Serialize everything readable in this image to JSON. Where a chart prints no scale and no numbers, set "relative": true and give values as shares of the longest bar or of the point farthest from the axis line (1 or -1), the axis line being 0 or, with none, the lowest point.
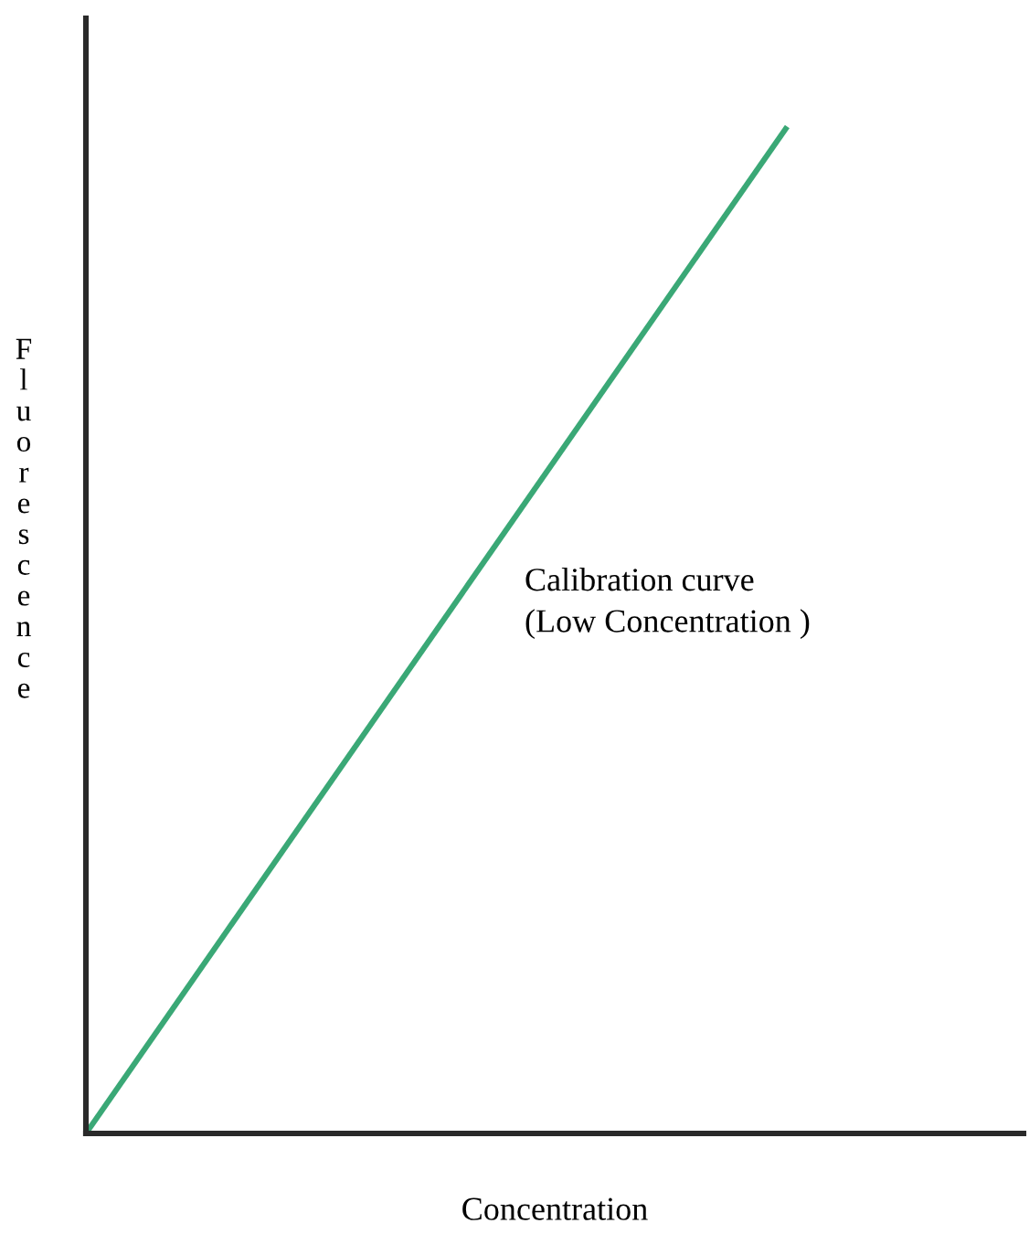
{
  "chart_data": {
    "type": "line",
    "relative": true,
    "xlabel": "Concentration",
    "ylabel": "Fluorescence",
    "categories": [
      null,
      null
    ],
    "series": [
      {
        "color": "#3aa876",
        "values": [
          0,
          1
        ]
      }
    ],
    "annotations": [
      "Calibration curve\n(Low Concentration )"
    ],
    "legend": false,
    "marker": "none",
    "line_style": "solid"
  }
}
